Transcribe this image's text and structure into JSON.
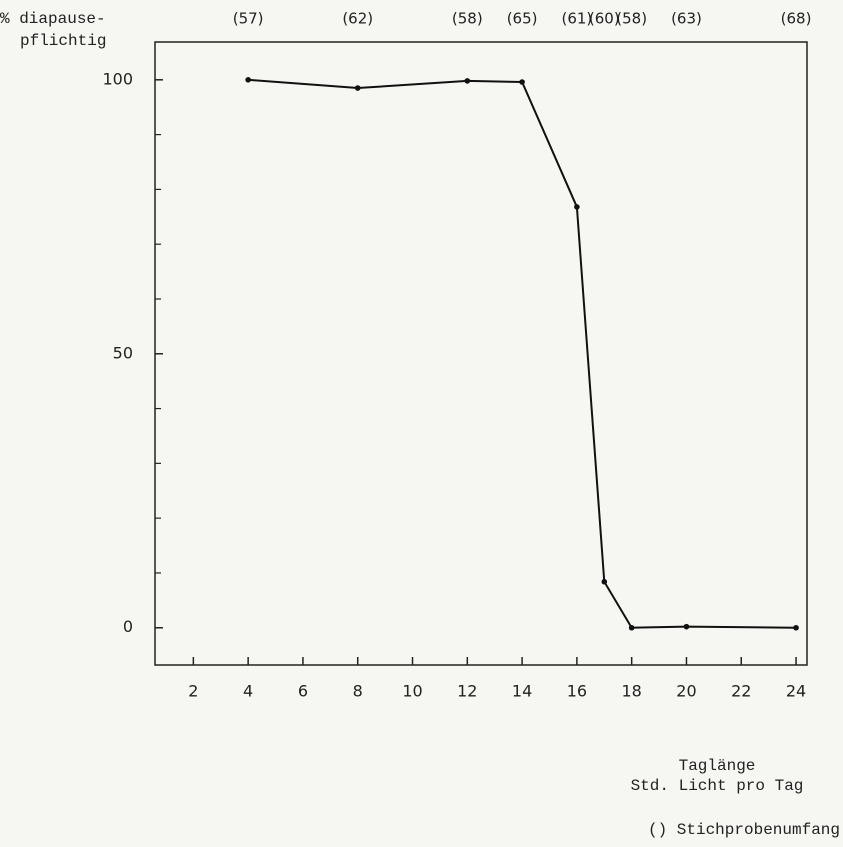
{
  "chart_data": {
    "type": "line",
    "ylabel": [
      "% diapause-",
      "pflichtig"
    ],
    "xlabel": [
      "Taglänge",
      "Std. Licht pro Tag"
    ],
    "note": "() Stichprobenumfang",
    "x": [
      4,
      8,
      12,
      14,
      16,
      17,
      18,
      20,
      24
    ],
    "series": [
      {
        "name": null,
        "color": "#111111",
        "values": [
          100,
          98.5,
          99.8,
          99.6,
          76.8,
          8.4,
          0,
          0.2,
          0
        ]
      }
    ],
    "sample_size_labels": [
      "(57)",
      "(62)",
      "(58)",
      "(65)",
      "(61)",
      "(60)",
      "(58)",
      "(63)",
      "(68)"
    ],
    "xlim": [
      0.6,
      24.4
    ],
    "ylim": [
      -6.8,
      106.9
    ],
    "xticks": [
      2,
      4,
      6,
      8,
      10,
      12,
      14,
      16,
      18,
      20,
      22,
      24
    ],
    "yticks": [
      0,
      50,
      100
    ],
    "yminor_ticks": [
      10,
      20,
      30,
      40,
      60,
      70,
      80,
      90
    ],
    "grid": false
  }
}
